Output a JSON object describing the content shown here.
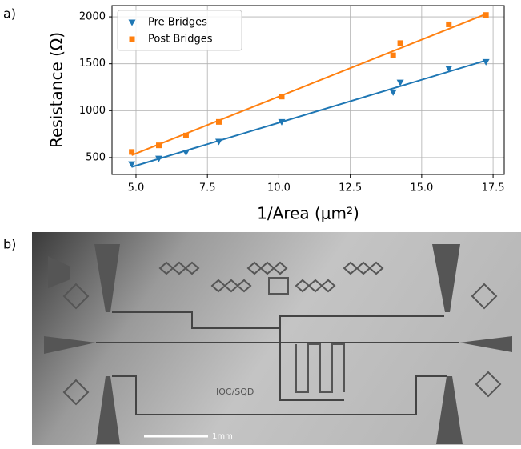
{
  "panel_labels": [
    "a)",
    "b)"
  ],
  "scale_bar_label": "1mm",
  "chip_label": "IOC/SQD",
  "chart_data": {
    "type": "scatter",
    "x_label": "1/Area (μm²)",
    "y_label": "Resistance (Ω)",
    "xlim": [
      4.16,
      17.89
    ],
    "ylim": [
      320,
      2120
    ],
    "xticks": [
      {
        "value": 5,
        "label": "5.0"
      },
      {
        "value": 7.5,
        "label": "7.5"
      },
      {
        "value": 10,
        "label": "10.0"
      },
      {
        "value": 12.5,
        "label": "12.5"
      },
      {
        "value": 15,
        "label": "15.0"
      },
      {
        "value": 17.5,
        "label": "17.5"
      }
    ],
    "yticks": [
      500,
      1000,
      1500,
      2000
    ],
    "grid": true,
    "legend": "upper-left",
    "series": [
      {
        "name": "Pre Bridges",
        "color": "#1f77b4",
        "marker": "triangle-down",
        "x": [
          4.85,
          5.8,
          6.75,
          7.9,
          10.1,
          14.0,
          14.25,
          15.95,
          17.25
        ],
        "values": [
          430,
          490,
          555,
          670,
          880,
          1195,
          1300,
          1450,
          1520
        ]
      },
      {
        "name": "Post Bridges",
        "color": "#ff7f0e",
        "marker": "square",
        "x": [
          4.85,
          5.8,
          6.75,
          7.9,
          10.1,
          14.0,
          14.25,
          15.95,
          17.25
        ],
        "values": [
          560,
          630,
          735,
          880,
          1150,
          1590,
          1720,
          1920,
          2020
        ]
      }
    ],
    "fits": [
      {
        "color": "#1f77b4",
        "x": [
          4.85,
          17.25
        ],
        "values": [
          400,
          1535
        ]
      },
      {
        "color": "#ff7f0e",
        "x": [
          4.85,
          17.25
        ],
        "values": [
          525,
          2030
        ]
      }
    ]
  }
}
